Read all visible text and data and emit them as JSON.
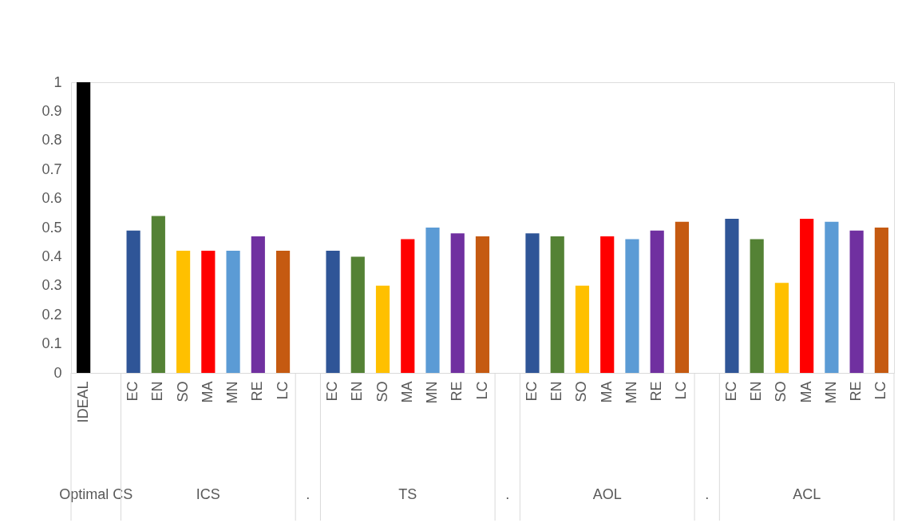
{
  "chart_data": {
    "type": "bar",
    "categories": [
      "IDEAL",
      null,
      "EC",
      "EN",
      "SO",
      "MA",
      "MN",
      "RE",
      "LC",
      null,
      "EC",
      "EN",
      "SO",
      "MA",
      "MN",
      "RE",
      "LC",
      null,
      "EC",
      "EN",
      "SO",
      "MA",
      "MN",
      "RE",
      "LC",
      null,
      "EC",
      "EN",
      "SO",
      "MA",
      "MN",
      "RE",
      "LC"
    ],
    "values": [
      1.0,
      null,
      0.49,
      0.54,
      0.42,
      0.42,
      0.42,
      0.47,
      0.42,
      null,
      0.42,
      0.4,
      0.3,
      0.46,
      0.5,
      0.48,
      0.47,
      null,
      0.48,
      0.47,
      0.3,
      0.47,
      0.46,
      0.49,
      0.52,
      null,
      0.53,
      0.46,
      0.31,
      0.53,
      0.52,
      0.49,
      0.5
    ],
    "colors": [
      "#000000",
      null,
      "#2f5597",
      "#548235",
      "#ffc000",
      "#ff0000",
      "#5b9bd5",
      "#7030a0",
      "#c55a11",
      null,
      "#2f5597",
      "#548235",
      "#ffc000",
      "#ff0000",
      "#5b9bd5",
      "#7030a0",
      "#c55a11",
      null,
      "#2f5597",
      "#548235",
      "#ffc000",
      "#ff0000",
      "#5b9bd5",
      "#7030a0",
      "#c55a11",
      null,
      "#2f5597",
      "#548235",
      "#ffc000",
      "#ff0000",
      "#5b9bd5",
      "#7030a0",
      "#c55a11"
    ],
    "annotations": [
      "Optimal CS",
      "ICS",
      ".",
      "TS",
      ".",
      "AOL",
      ".",
      "ACL"
    ],
    "ylim": [
      0,
      1
    ],
    "yticks": [
      0,
      0.1,
      0.2,
      0.3,
      0.4,
      0.5,
      0.6,
      0.7,
      0.8,
      0.9,
      1
    ],
    "grid": false
  }
}
